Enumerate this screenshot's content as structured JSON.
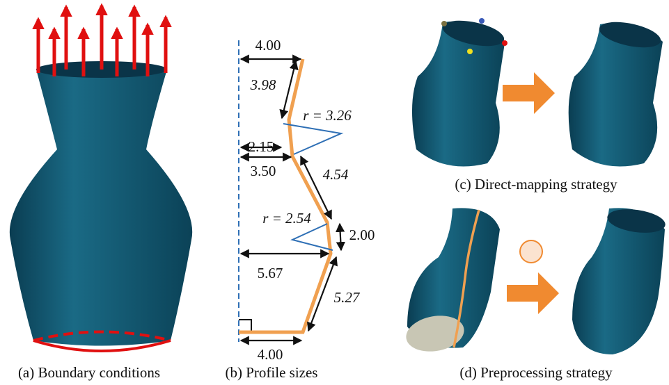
{
  "panels": [
    {
      "caption": "(a) Boundary conditions"
    },
    {
      "caption": "(b) Profile sizes",
      "dimensions": [
        "4.00",
        "3.98",
        "r = 3.26",
        "2.15",
        "3.50",
        "4.54",
        "r = 2.54",
        "2.00",
        "5.67",
        "5.27",
        "4.00"
      ]
    },
    {
      "caption": "(c) Direct-mapping strategy"
    },
    {
      "caption": "(d) Preprocessing strategy"
    }
  ]
}
